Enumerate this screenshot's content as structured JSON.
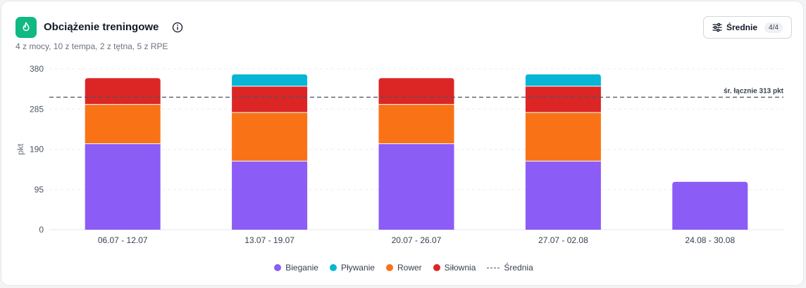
{
  "header": {
    "title": "Obciążenie treningowe",
    "subtitle": "4 z mocy, 10 z tempa, 2 z tętna, 5 z RPE",
    "icon": "flame-icon",
    "icon_color": "#10b981",
    "avg_button": {
      "label": "Średnie",
      "badge": "4/4",
      "icon": "sliders-icon"
    }
  },
  "chart_data": {
    "type": "bar",
    "stacked": true,
    "categories": [
      "06.07 - 12.07",
      "13.07 - 19.07",
      "20.07 - 26.07",
      "27.07 - 02.08",
      "24.08 - 30.08"
    ],
    "series": [
      {
        "name": "Bieganie",
        "color": "#8b5cf6",
        "values": [
          203,
          162,
          203,
          162,
          113
        ]
      },
      {
        "name": "Rower",
        "color": "#f97316",
        "values": [
          93,
          115,
          93,
          115,
          0
        ]
      },
      {
        "name": "Siłownia",
        "color": "#dc2626",
        "values": [
          62,
          62,
          62,
          62,
          0
        ]
      },
      {
        "name": "Pływanie",
        "color": "#06b6d4",
        "values": [
          0,
          28,
          0,
          28,
          0
        ]
      }
    ],
    "ylabel": "pkt",
    "yticks": [
      0,
      95,
      190,
      285,
      380
    ],
    "ylim": [
      0,
      380
    ],
    "grid": true,
    "reference_line": {
      "value": 313,
      "label": "śr. łącznie 313 pkt",
      "style": "dashed"
    },
    "legend": {
      "placement": "bottom",
      "items": [
        {
          "name": "Bieganie",
          "color": "#8b5cf6"
        },
        {
          "name": "Pływanie",
          "color": "#06b6d4"
        },
        {
          "name": "Rower",
          "color": "#f97316"
        },
        {
          "name": "Siłownia",
          "color": "#dc2626"
        }
      ],
      "average_label": "Średnia"
    }
  }
}
